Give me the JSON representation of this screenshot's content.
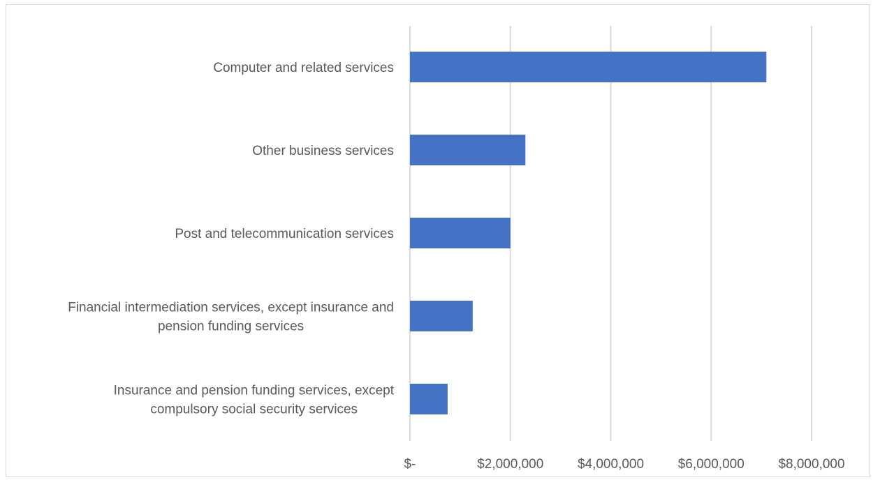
{
  "chart_data": {
    "type": "bar",
    "orientation": "horizontal",
    "title": "",
    "xlabel": "",
    "ylabel": "",
    "categories": [
      "Computer and related services",
      "Other business services",
      "Post and telecommunication services",
      "Financial intermediation services, except insurance and pension funding services",
      "Insurance and pension funding services, except compulsory social security services"
    ],
    "category_label_lines": [
      [
        "Computer and related services"
      ],
      [
        "Other business services"
      ],
      [
        "Post and telecommunication services"
      ],
      [
        "Financial intermediation services, except insurance and",
        "pension funding services"
      ],
      [
        "Insurance and pension funding services, except",
        "compulsory social security services"
      ]
    ],
    "values": [
      7100000,
      2300000,
      2000000,
      1250000,
      750000
    ],
    "xlim": [
      0,
      8000000
    ],
    "x_ticks": [
      0,
      2000000,
      4000000,
      6000000,
      8000000
    ],
    "x_tick_labels": [
      "$-",
      "$2,000,000",
      "$4,000,000",
      "$6,000,000",
      "$8,000,000"
    ],
    "grid": "vertical",
    "legend": "none",
    "bar_color": "#4472c4",
    "grid_color": "#d9d9d9",
    "text_color": "#595959"
  }
}
